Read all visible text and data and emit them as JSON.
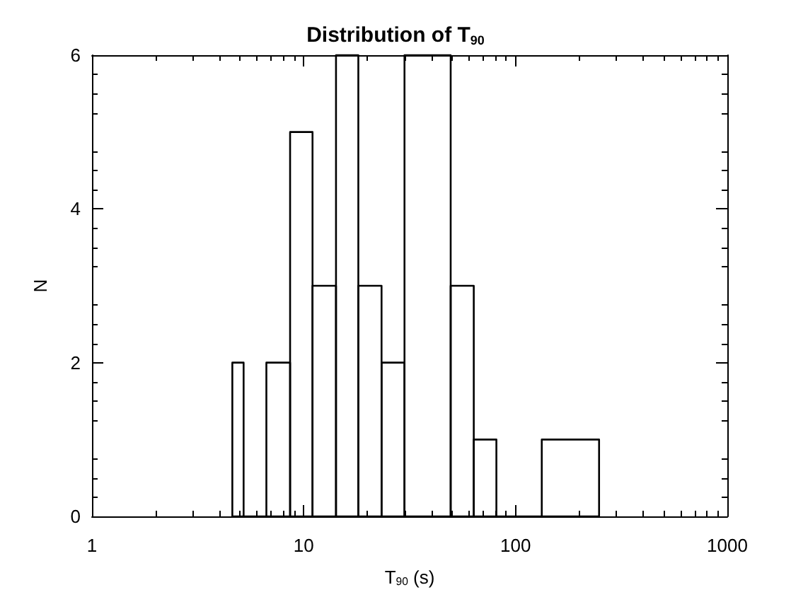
{
  "chart_data": {
    "type": "histogram",
    "title": "Distribution of T$_{90}$",
    "xlabel": "T$_{90}$ (s)",
    "ylabel": "N",
    "bins": [
      4.6,
      5.2,
      6.66,
      8.62,
      11.0,
      14.2,
      18.1,
      23.3,
      29.9,
      49.4,
      63.5,
      81.2,
      133,
      248
    ],
    "values": [
      2,
      0,
      2,
      5,
      3,
      6,
      3,
      2,
      6,
      3,
      1,
      0,
      1
    ],
    "color": "#000000",
    "log": "x",
    "xlim": [
      1,
      1000
    ],
    "xticks": [
      1,
      {
        "value": 2,
        "label": null
      },
      {
        "value": 3,
        "label": null
      },
      {
        "value": 4,
        "label": null
      },
      {
        "value": 5,
        "label": null
      },
      {
        "value": 6,
        "label": null
      },
      {
        "value": 7,
        "label": null
      },
      {
        "value": 8,
        "label": null
      },
      {
        "value": 9,
        "label": null
      },
      10,
      {
        "value": 20,
        "label": null
      },
      {
        "value": 30,
        "label": null
      },
      {
        "value": 40,
        "label": null
      },
      {
        "value": 50,
        "label": null
      },
      {
        "value": 60,
        "label": null
      },
      {
        "value": 70,
        "label": null
      },
      {
        "value": 80,
        "label": null
      },
      {
        "value": 90,
        "label": null
      },
      100,
      {
        "value": 200,
        "label": null
      },
      {
        "value": 300,
        "label": null
      },
      {
        "value": 400,
        "label": null
      },
      {
        "value": 500,
        "label": null
      },
      {
        "value": 600,
        "label": null
      },
      {
        "value": 700,
        "label": null
      },
      {
        "value": 800,
        "label": null
      },
      {
        "value": 900,
        "label": null
      },
      1000
    ],
    "ylim": [
      0,
      6
    ],
    "yticks": [
      0,
      2,
      4,
      6
    ],
    "grid": false
  }
}
